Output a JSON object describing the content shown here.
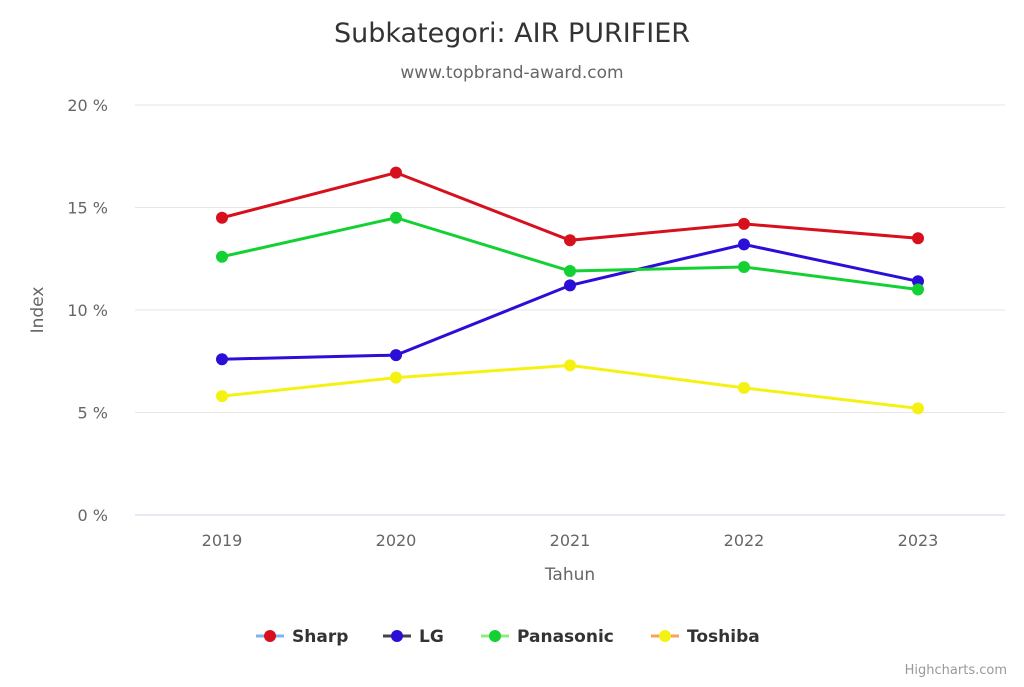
{
  "chart_data": {
    "type": "line",
    "title": "Subkategori: AIR PURIFIER",
    "subtitle": "www.topbrand-award.com",
    "xlabel": "Tahun",
    "ylabel": "Index",
    "categories": [
      "2019",
      "2020",
      "2021",
      "2022",
      "2023"
    ],
    "ylim": [
      0,
      20
    ],
    "yticks": [
      0,
      5,
      10,
      15,
      20
    ],
    "ytick_suffix": " %",
    "grid": true,
    "legend_position": "bottom",
    "series": [
      {
        "name": "Sharp",
        "color": "#d7101e",
        "legend_line_color": "#7cb5ec",
        "values": [
          14.5,
          16.7,
          13.4,
          14.2,
          13.5
        ]
      },
      {
        "name": "LG",
        "color": "#2b0fd8",
        "legend_line_color": "#434348",
        "values": [
          7.6,
          7.8,
          11.2,
          13.2,
          11.4
        ]
      },
      {
        "name": "Panasonic",
        "color": "#13d133",
        "legend_line_color": "#90ed7d",
        "values": [
          12.6,
          14.5,
          11.9,
          12.1,
          11.0
        ]
      },
      {
        "name": "Toshiba",
        "color": "#f5f213",
        "legend_line_color": "#f7a35c",
        "values": [
          5.8,
          6.7,
          7.3,
          6.2,
          5.2
        ]
      }
    ]
  },
  "credits": "Highcharts.com"
}
